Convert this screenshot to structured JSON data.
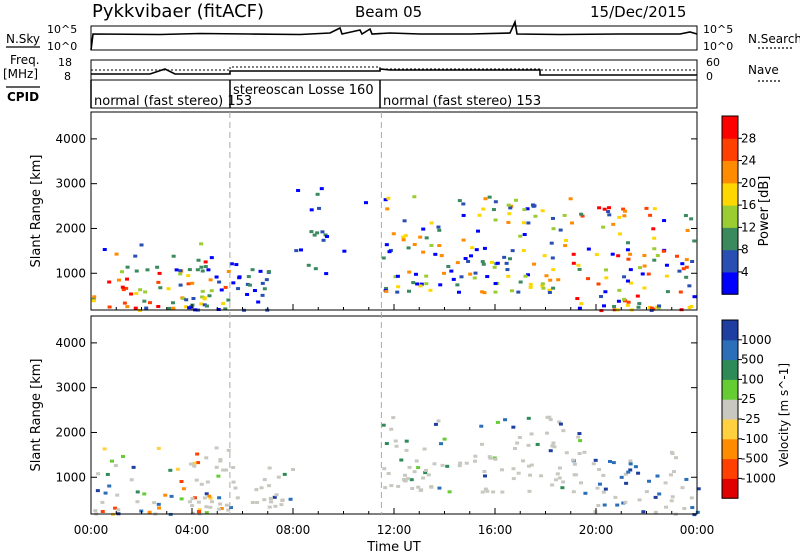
{
  "header": {
    "station": "Pykkvibaer (fitACF)",
    "beam": "Beam 05",
    "date": "15/Dec/2015"
  },
  "left_labels": {
    "nsky": "N.Sky",
    "freq": "Freq.",
    "mhz": "[MHz]",
    "cpid": "CPID"
  },
  "right_labels": {
    "nsearch": "N.Search",
    "nave": "Nave"
  },
  "strip1": {
    "left_ticks": [
      "10^5",
      "10^0"
    ],
    "right_ticks": [
      "10^5",
      "10^0"
    ]
  },
  "strip2": {
    "left_ticks": [
      "18",
      "8"
    ],
    "right_ticks": [
      "60",
      "0"
    ]
  },
  "cpid_segments": [
    {
      "label": "normal (fast stereo) 153",
      "start_hour": 0,
      "end_hour": 5.5
    },
    {
      "label": "stereoscan Losse 160",
      "start_hour": 5.5,
      "end_hour": 11.5
    },
    {
      "label": "normal (fast stereo) 153",
      "start_hour": 11.5,
      "end_hour": 24
    }
  ],
  "x_axis": {
    "label": "Time UT",
    "ticks": [
      "00:00",
      "04:00",
      "08:00",
      "12:00",
      "16:00",
      "20:00",
      "00:00"
    ]
  },
  "chart_data": [
    {
      "type": "heatmap",
      "title": "",
      "xlabel": "Time UT",
      "ylabel": "Slant Range [km]",
      "x_range_hours": [
        0,
        24
      ],
      "ylim": [
        180,
        4600
      ],
      "y_ticks": [
        "1000",
        "2000",
        "3000",
        "4000"
      ],
      "colorbar": {
        "label": "Power [dB]",
        "ticks": [
          "4",
          "8",
          "12",
          "16",
          "20",
          "24",
          "28"
        ],
        "colors": [
          "#0000ff",
          "#2a4fb2",
          "#3a8a5e",
          "#9acd32",
          "#ffd700",
          "#ff8c00",
          "#ff4000",
          "#ff0000"
        ]
      },
      "echo_regions": [
        {
          "t0": 0,
          "t1": 5.4,
          "r0": 200,
          "r1": 1700,
          "level": "mixed-high"
        },
        {
          "t0": 3.0,
          "t1": 7.0,
          "r0": 200,
          "r1": 1400,
          "level": "low"
        },
        {
          "t0": 8.0,
          "t1": 11.0,
          "r0": 1000,
          "r1": 3000,
          "level": "sparse"
        },
        {
          "t0": 11.5,
          "t1": 19.0,
          "r0": 600,
          "r1": 2800,
          "level": "mixed"
        },
        {
          "t0": 19.0,
          "t1": 24.0,
          "r0": 200,
          "r1": 2600,
          "level": "mixed-high"
        }
      ]
    },
    {
      "type": "heatmap",
      "title": "",
      "xlabel": "Time UT",
      "ylabel": "Slant Range [km]",
      "x_range_hours": [
        0,
        24
      ],
      "ylim": [
        180,
        4600
      ],
      "y_ticks": [
        "1000",
        "2000",
        "3000",
        "4000"
      ],
      "colorbar": {
        "label": "Velocity [m s^-1]",
        "ticks": [
          "1000",
          "500",
          "100",
          "25",
          "-25",
          "-100",
          "-500",
          "-1000"
        ],
        "colors": [
          "#1e3fa0",
          "#2a6fb8",
          "#2e8b57",
          "#66cc33",
          "#c8c8c0",
          "#ffd040",
          "#ff8c00",
          "#ff4000",
          "#e00000"
        ]
      },
      "echo_regions": [
        {
          "t0": 0,
          "t1": 5.4,
          "r0": 200,
          "r1": 1700,
          "level": "mixed"
        },
        {
          "t0": 4.0,
          "t1": 8.0,
          "r0": 300,
          "r1": 1400,
          "level": "ground-scatter"
        },
        {
          "t0": 11.5,
          "t1": 19.5,
          "r0": 700,
          "r1": 2400,
          "level": "ground-scatter"
        },
        {
          "t0": 19.5,
          "t1": 24.0,
          "r0": 200,
          "r1": 1600,
          "level": "negative-blue"
        }
      ]
    }
  ]
}
